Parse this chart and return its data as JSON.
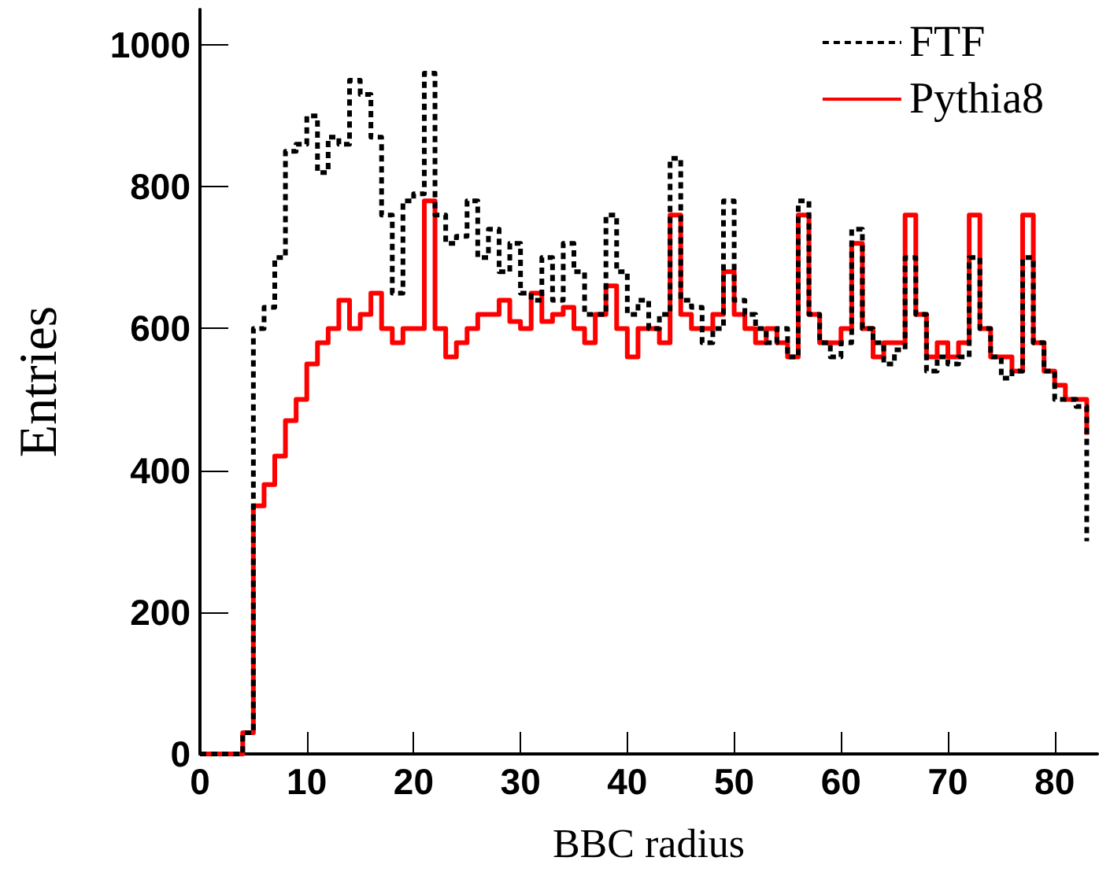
{
  "chart_data": {
    "type": "step",
    "xlabel": "BBC radius",
    "ylabel": "Entries",
    "x": [
      0,
      1,
      2,
      3,
      4,
      5,
      6,
      7,
      8,
      9,
      10,
      11,
      12,
      13,
      14,
      15,
      16,
      17,
      18,
      19,
      20,
      21,
      22,
      23,
      24,
      25,
      26,
      27,
      28,
      29,
      30,
      31,
      32,
      33,
      34,
      35,
      36,
      37,
      38,
      39,
      40,
      41,
      42,
      43,
      44,
      45,
      46,
      47,
      48,
      49,
      50,
      51,
      52,
      53,
      54,
      55,
      56,
      57,
      58,
      59,
      60,
      61,
      62,
      63,
      64,
      65,
      66,
      67,
      68,
      69,
      70,
      71,
      72,
      73,
      74,
      75,
      76,
      77,
      78,
      79,
      80,
      81,
      82,
      83
    ],
    "series": [
      {
        "name": "FTF",
        "color": "#000000",
        "line_style": "dashed",
        "values": [
          0,
          0,
          0,
          0,
          30,
          600,
          630,
          700,
          850,
          860,
          900,
          820,
          870,
          860,
          950,
          930,
          870,
          760,
          650,
          780,
          790,
          960,
          760,
          720,
          730,
          780,
          700,
          740,
          680,
          720,
          650,
          640,
          700,
          640,
          720,
          680,
          620,
          620,
          760,
          680,
          620,
          640,
          600,
          620,
          840,
          640,
          630,
          580,
          600,
          780,
          640,
          620,
          600,
          580,
          600,
          560,
          780,
          620,
          580,
          560,
          580,
          740,
          600,
          580,
          550,
          570,
          700,
          620,
          540,
          560,
          550,
          560,
          700,
          600,
          560,
          530,
          540,
          700,
          580,
          540,
          500,
          500,
          490,
          300
        ]
      },
      {
        "name": "Pythia8",
        "color": "#ff0000",
        "line_style": "solid",
        "values": [
          0,
          0,
          0,
          0,
          30,
          350,
          380,
          420,
          470,
          500,
          550,
          580,
          600,
          640,
          600,
          620,
          650,
          600,
          580,
          600,
          600,
          780,
          600,
          560,
          580,
          600,
          620,
          620,
          640,
          610,
          600,
          650,
          610,
          620,
          630,
          600,
          580,
          620,
          660,
          600,
          560,
          600,
          600,
          580,
          760,
          620,
          600,
          600,
          620,
          680,
          620,
          600,
          580,
          600,
          580,
          560,
          760,
          620,
          580,
          580,
          600,
          720,
          600,
          560,
          580,
          580,
          760,
          620,
          560,
          580,
          560,
          580,
          760,
          600,
          560,
          560,
          540,
          760,
          580,
          540,
          520,
          500,
          500,
          450
        ]
      }
    ],
    "xlim": [
      0,
      84
    ],
    "xticks": [
      0,
      10,
      20,
      30,
      40,
      50,
      60,
      70,
      80
    ],
    "ylim": [
      0,
      1050
    ],
    "yticks": [
      0,
      200,
      400,
      600,
      800,
      1000
    ],
    "grid": false,
    "legend": "top right"
  }
}
